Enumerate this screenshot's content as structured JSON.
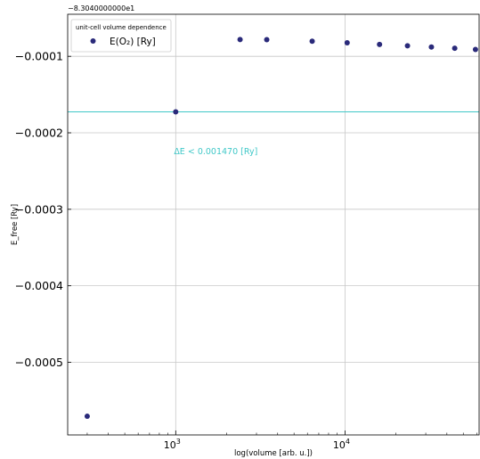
{
  "chart_data": {
    "type": "scatter",
    "xlabel": "log(volume [arb. u.])",
    "ylabel": "E_free [Ry]",
    "y_offset_label": "−8.3040000000e1",
    "x_scale": "log",
    "xlim": [
      230,
      62000
    ],
    "ylim": [
      -0.000595,
      -4.5e-05
    ],
    "grid": true,
    "x_ticks": [
      {
        "value": 1000,
        "base": "10",
        "exp": "3"
      },
      {
        "value": 10000,
        "base": "10",
        "exp": "4"
      }
    ],
    "y_ticks": [
      {
        "value": -0.0001,
        "label": "−0.0001"
      },
      {
        "value": -0.0002,
        "label": "−0.0002"
      },
      {
        "value": -0.0003,
        "label": "−0.0003"
      },
      {
        "value": -0.0004,
        "label": "−0.0004"
      },
      {
        "value": -0.0005,
        "label": "−0.0005"
      }
    ],
    "legend": {
      "placement": "top-left",
      "title": "unit-cell volume dependence",
      "entry": "E(O₂) [Ry]"
    },
    "series": [
      {
        "name": "E(O₂) [Ry]",
        "color": "#2a2a7a",
        "x": [
          300,
          1000,
          2400,
          3450,
          6400,
          10300,
          16000,
          23400,
          32400,
          44500,
          59000
        ],
        "y": [
          -0.0005706,
          -0.0001726,
          -7.8e-05,
          -7.82e-05,
          -8.02e-05,
          -8.23e-05,
          -8.45e-05,
          -8.62e-05,
          -8.78e-05,
          -8.94e-05,
          -9.1e-05
        ]
      }
    ],
    "reference_line": {
      "y": -0.0001726,
      "color": "#40c8c8"
    },
    "annotation": {
      "text": "ΔE < 0.001470 [Ry]",
      "color": "#40c8c8",
      "x": 1000,
      "y": -0.000228
    }
  }
}
